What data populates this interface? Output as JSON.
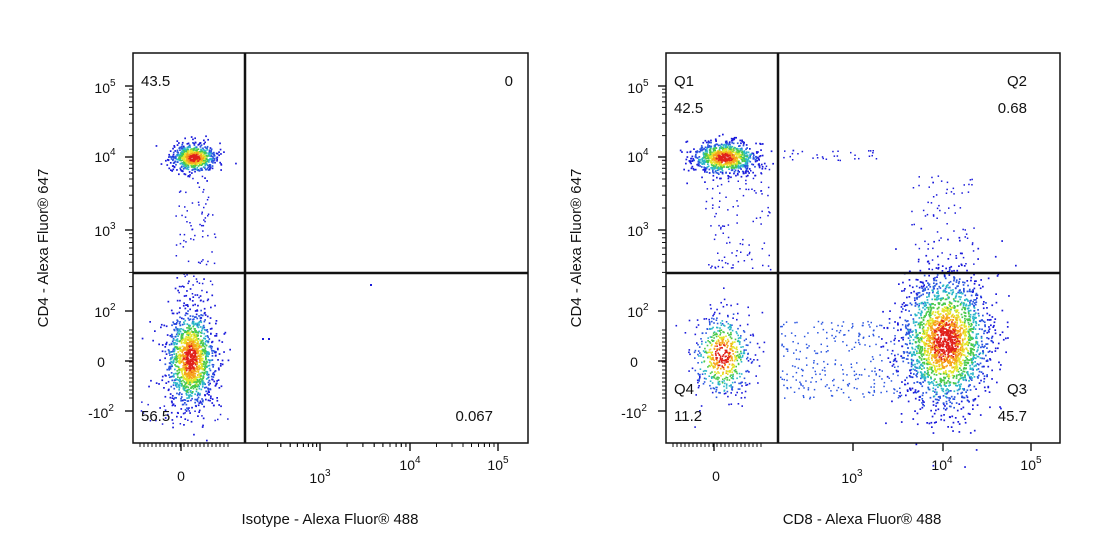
{
  "chart_data": [
    {
      "type": "scatter",
      "title": "",
      "xlabel": "Isotype - Alexa Fluor® 488",
      "ylabel": "CD4 - Alexa Fluor® 647",
      "x_ticks": [
        "0",
        "10^3",
        "10^4",
        "10^5"
      ],
      "y_ticks": [
        "-10^2",
        "0",
        "10^2",
        "10^3",
        "10^4",
        "10^5"
      ],
      "xlim": [
        "-10^2",
        "10^5"
      ],
      "ylim": [
        "-10^2",
        "10^5"
      ],
      "quadrant_labels": {
        "Q1": "",
        "Q2": "",
        "Q3": "",
        "Q4": ""
      },
      "quadrant_percent": {
        "Q1": "43.5",
        "Q2": "0",
        "Q3": "0.067",
        "Q4": "56.5"
      },
      "color_scale": "density (blue-green-yellow-red)"
    },
    {
      "type": "scatter",
      "title": "",
      "xlabel": "CD8 - Alexa Fluor® 488",
      "ylabel": "CD4 - Alexa Fluor® 647",
      "x_ticks": [
        "0",
        "10^3",
        "10^4",
        "10^5"
      ],
      "y_ticks": [
        "-10^2",
        "0",
        "10^2",
        "10^3",
        "10^4",
        "10^5"
      ],
      "xlim": [
        "-10^2",
        "10^5"
      ],
      "ylim": [
        "-10^2",
        "10^5"
      ],
      "quadrant_labels": {
        "Q1": "Q1",
        "Q2": "Q2",
        "Q3": "Q3",
        "Q4": "Q4"
      },
      "quadrant_percent": {
        "Q1": "42.5",
        "Q2": "0.68",
        "Q3": "45.7",
        "Q4": "11.2"
      },
      "color_scale": "density (blue-green-yellow-red)"
    }
  ]
}
